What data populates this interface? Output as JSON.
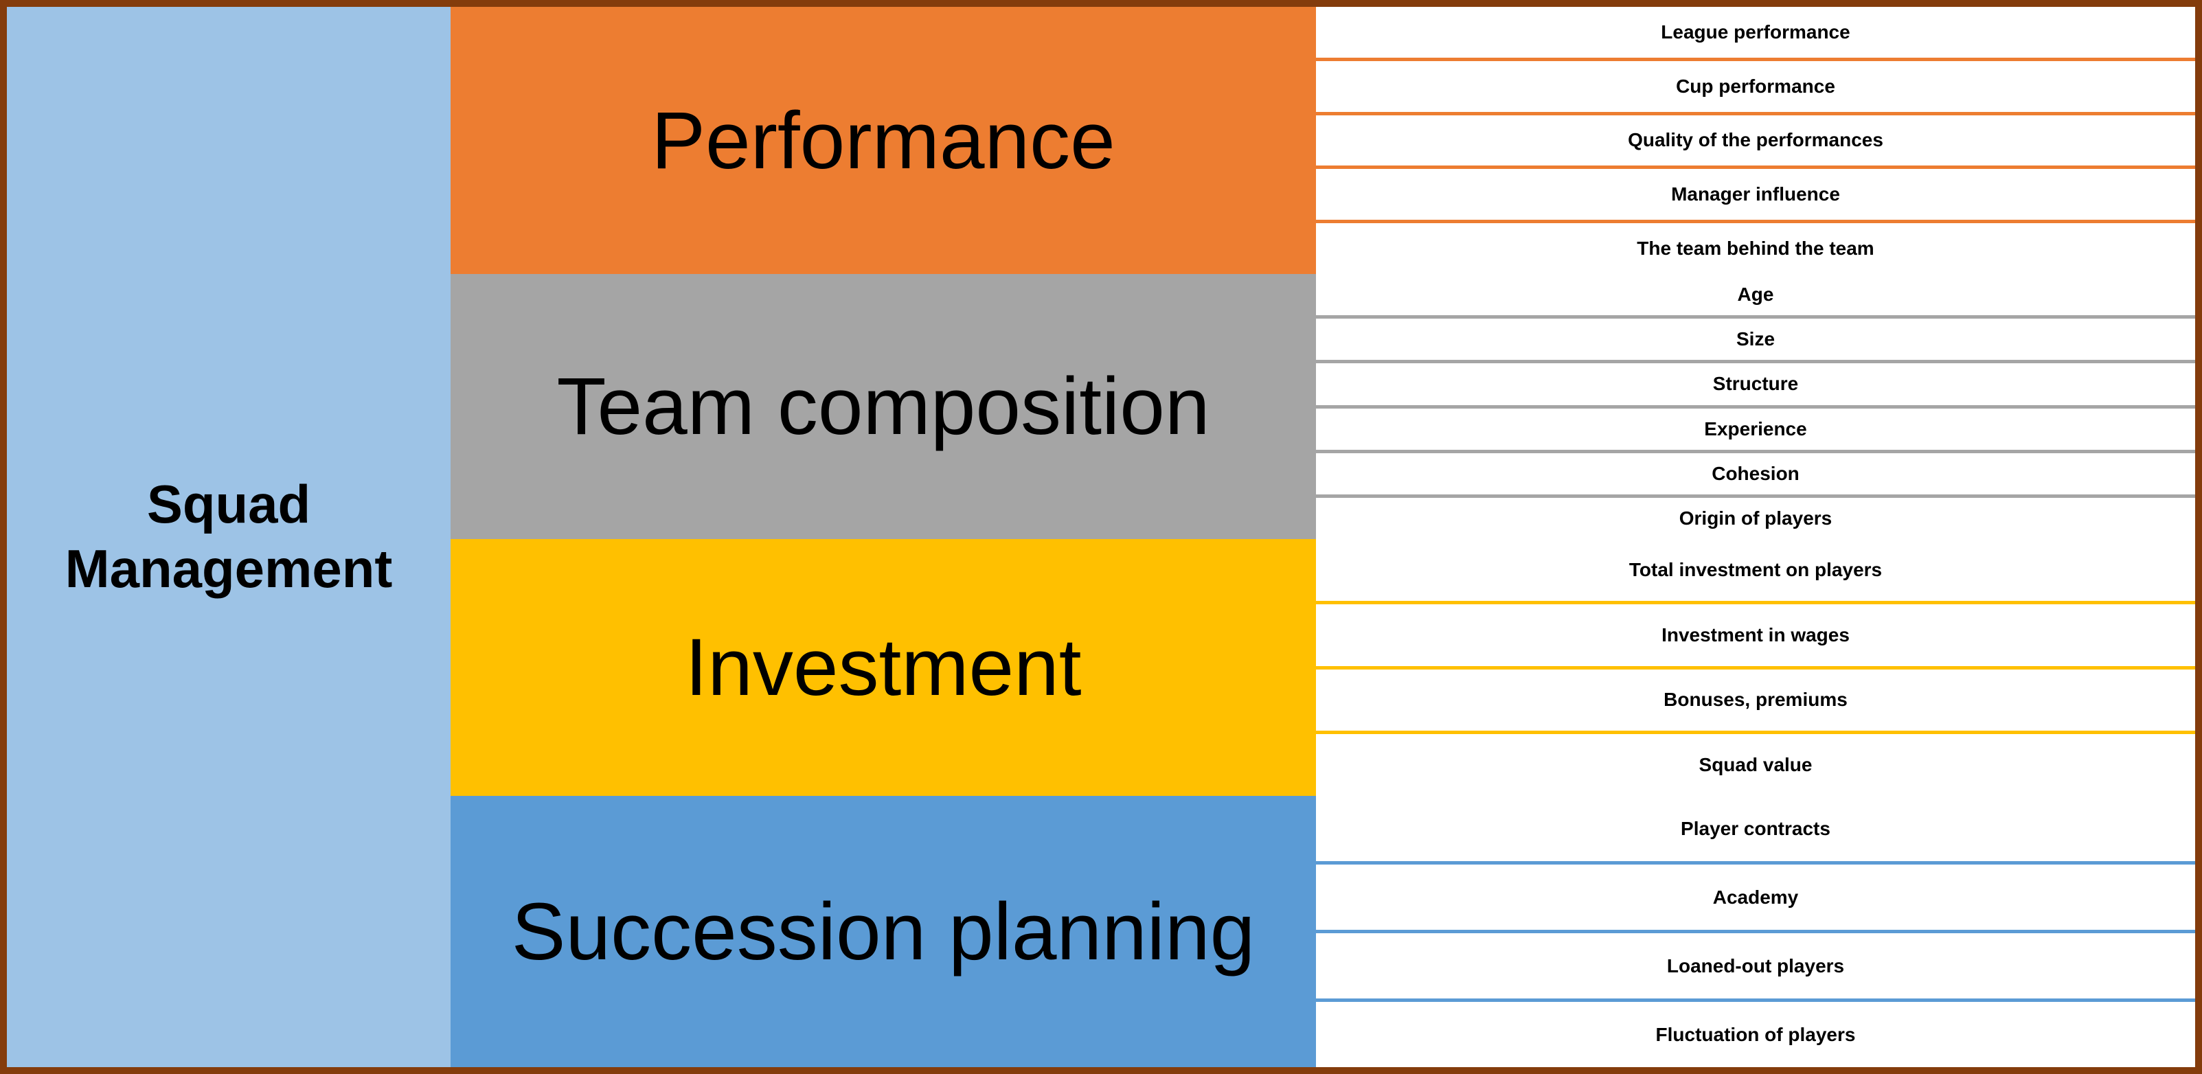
{
  "root": {
    "label": "Squad\nManagement",
    "color": "#9DC3E6"
  },
  "frame_color": "#843C0C",
  "groups": [
    {
      "label": "Performance",
      "color": "#ED7D31",
      "items": [
        "League  performance",
        "Cup performance",
        "Quality of the performances",
        "Manager influence",
        "The team behind the team"
      ]
    },
    {
      "label": "Team composition",
      "color": "#A5A5A5",
      "items": [
        "Age",
        "Size",
        "Structure",
        "Experience",
        "Cohesion",
        "Origin of players"
      ]
    },
    {
      "label": "Investment",
      "color": "#FFC000",
      "items": [
        "Total investment on players",
        "Investment in wages",
        "Bonuses, premiums",
        "Squad value"
      ]
    },
    {
      "label": "Succession planning",
      "color": "#5B9BD5",
      "items": [
        "Player contracts",
        "Academy",
        "Loaned-out players",
        "Fluctuation of players"
      ]
    }
  ]
}
